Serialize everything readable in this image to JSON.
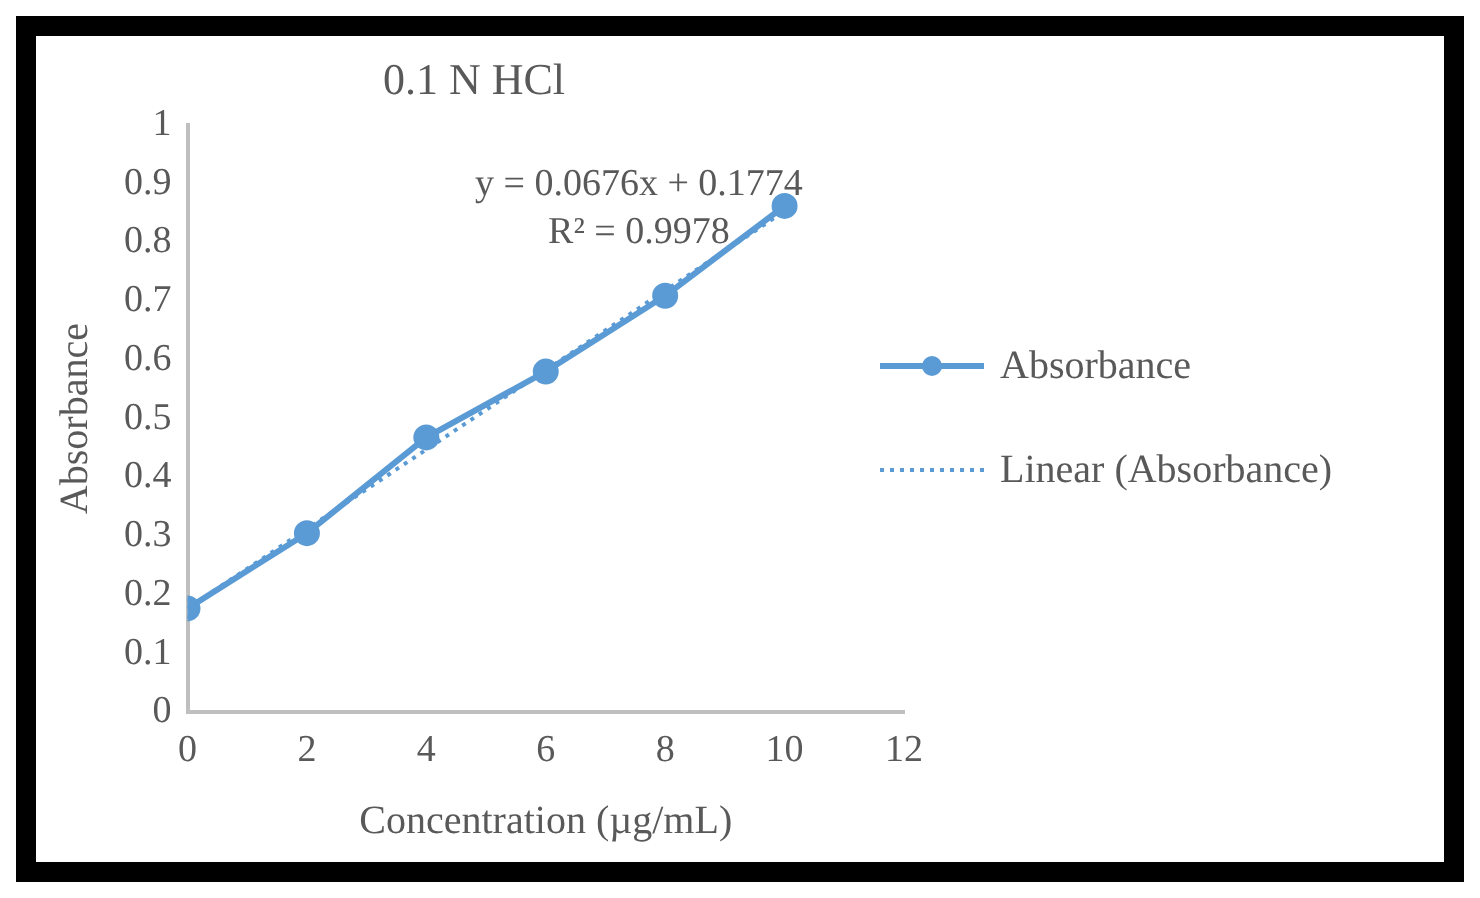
{
  "chart_data": {
    "type": "line",
    "title": "0.1 N HCl",
    "xlabel": "Concentration (µg/mL)",
    "ylabel": "Absorbance",
    "xlim": [
      0,
      12
    ],
    "xticks": [
      0,
      2,
      4,
      6,
      8,
      10,
      12
    ],
    "ylim": [
      0,
      1
    ],
    "yticks": [
      0,
      0.1,
      0.2,
      0.3,
      0.4,
      0.5,
      0.6,
      0.7,
      0.8,
      0.9,
      1
    ],
    "legend": "right",
    "series": [
      {
        "name": "Absorbance",
        "color": "#5b9bd5",
        "x": [
          0,
          2,
          4,
          6,
          8,
          10
        ],
        "values": [
          0.177,
          0.305,
          0.468,
          0.58,
          0.709,
          0.862
        ],
        "marker": "circle",
        "line_style": "solid"
      },
      {
        "name": "Linear (Absorbance)",
        "color": "#5b9bd5",
        "x": [
          0,
          10
        ],
        "values": [
          0.177,
          0.853
        ],
        "marker": "none",
        "line_style": "dotted"
      }
    ],
    "annotations": [
      "y = 0.0676x + 0.1774",
      "R² = 0.9978"
    ]
  }
}
